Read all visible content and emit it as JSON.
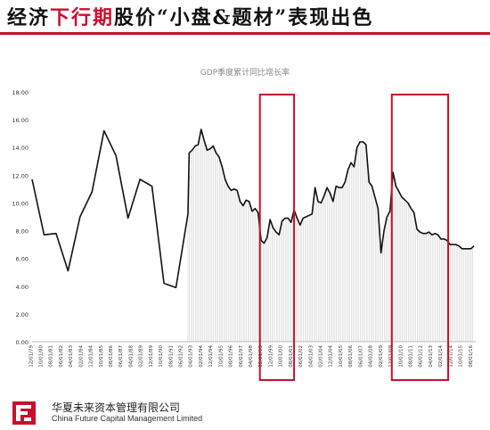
{
  "headline": {
    "part1": "经济",
    "part2": "下行期",
    "part3": "股价“小盘&题材”表现出色"
  },
  "company": {
    "name_cn": "华夏未来资本管理有限公司",
    "name_en": "China Future Capital Management Limited"
  },
  "colors": {
    "accent": "#c8102e",
    "line": "#111111",
    "hatch": "#d4d4d4"
  },
  "chart_data": {
    "type": "line",
    "title": "GDP季度累计同比增长率",
    "ylim": [
      0,
      18
    ],
    "yticks": [
      "0.00",
      "2.00",
      "4.00",
      "6.00",
      "8.00",
      "10.00",
      "12.00",
      "14.00",
      "16.00",
      "18.00"
    ],
    "xticks": [
      "12/01/79",
      "10/01/80",
      "08/01/81",
      "06/01/82",
      "04/01/83",
      "02/01/84",
      "12/01/84",
      "10/01/85",
      "08/01/86",
      "06/01/87",
      "04/01/88",
      "02/01/89",
      "12/01/89",
      "10/01/90",
      "08/01/91",
      "06/01/92",
      "04/01/93",
      "02/01/94",
      "12/01/94",
      "10/01/95",
      "08/01/96",
      "06/01/97",
      "04/01/98",
      "02/01/99",
      "12/01/99",
      "10/01/00",
      "08/01/01",
      "06/01/02",
      "04/01/03",
      "02/01/04",
      "12/01/04",
      "10/01/05",
      "08/01/06",
      "06/01/07",
      "04/01/08",
      "02/01/09",
      "12/01/09",
      "10/01/10",
      "08/01/11",
      "06/01/12",
      "04/01/13",
      "02/01/14",
      "12/01/14",
      "10/01/15",
      "08/01/16"
    ],
    "series": [
      {
        "points": [
          [
            1979.9,
            11.7
          ],
          [
            1980.9,
            7.7
          ],
          [
            1981.9,
            7.8
          ],
          [
            1982.9,
            5.1
          ],
          [
            1983.9,
            9.0
          ],
          [
            1984.9,
            10.8
          ],
          [
            1985.9,
            15.2
          ],
          [
            1986.9,
            13.4
          ],
          [
            1987.9,
            8.9
          ],
          [
            1988.9,
            11.7
          ],
          [
            1989.9,
            11.2
          ],
          [
            1990.9,
            4.2
          ],
          [
            1991.9,
            3.9
          ],
          [
            1992.9,
            9.2
          ],
          [
            1993.0,
            13.6
          ],
          [
            1993.25,
            13.8
          ],
          [
            1993.5,
            14.1
          ],
          [
            1993.75,
            14.2
          ],
          [
            1994.0,
            15.3
          ],
          [
            1994.25,
            14.5
          ],
          [
            1994.5,
            13.8
          ],
          [
            1994.75,
            13.9
          ],
          [
            1995.0,
            14.1
          ],
          [
            1995.25,
            13.6
          ],
          [
            1995.5,
            13.3
          ],
          [
            1995.75,
            12.6
          ],
          [
            1996.0,
            11.7
          ],
          [
            1996.25,
            11.2
          ],
          [
            1996.5,
            10.9
          ],
          [
            1996.75,
            11.0
          ],
          [
            1997.0,
            10.9
          ],
          [
            1997.25,
            10.1
          ],
          [
            1997.5,
            9.8
          ],
          [
            1997.75,
            10.2
          ],
          [
            1998.0,
            10.1
          ],
          [
            1998.25,
            9.4
          ],
          [
            1998.5,
            9.6
          ],
          [
            1998.75,
            9.3
          ],
          [
            1999.0,
            7.3
          ],
          [
            1999.25,
            7.1
          ],
          [
            1999.5,
            7.5
          ],
          [
            1999.75,
            8.8
          ],
          [
            2000.0,
            8.2
          ],
          [
            2000.25,
            7.9
          ],
          [
            2000.5,
            7.7
          ],
          [
            2000.75,
            8.7
          ],
          [
            2001.0,
            8.9
          ],
          [
            2001.25,
            8.9
          ],
          [
            2001.5,
            8.6
          ],
          [
            2001.75,
            9.5
          ],
          [
            2002.0,
            8.9
          ],
          [
            2002.25,
            8.4
          ],
          [
            2002.5,
            8.9
          ],
          [
            2002.75,
            9.0
          ],
          [
            2003.0,
            9.1
          ],
          [
            2003.25,
            9.2
          ],
          [
            2003.5,
            11.1
          ],
          [
            2003.75,
            10.1
          ],
          [
            2004.0,
            10.0
          ],
          [
            2004.25,
            10.5
          ],
          [
            2004.5,
            11.1
          ],
          [
            2004.75,
            10.7
          ],
          [
            2005.0,
            10.1
          ],
          [
            2005.25,
            11.2
          ],
          [
            2005.5,
            11.1
          ],
          [
            2005.75,
            11.1
          ],
          [
            2006.0,
            11.5
          ],
          [
            2006.25,
            12.4
          ],
          [
            2006.5,
            12.9
          ],
          [
            2006.75,
            12.6
          ],
          [
            2007.0,
            14.0
          ],
          [
            2007.25,
            14.4
          ],
          [
            2007.5,
            14.4
          ],
          [
            2007.75,
            14.2
          ],
          [
            2008.0,
            11.5
          ],
          [
            2008.25,
            11.2
          ],
          [
            2008.5,
            10.4
          ],
          [
            2008.75,
            9.6
          ],
          [
            2009.0,
            6.4
          ],
          [
            2009.25,
            8.0
          ],
          [
            2009.5,
            9.0
          ],
          [
            2009.75,
            9.4
          ],
          [
            2010.0,
            12.2
          ],
          [
            2010.25,
            11.2
          ],
          [
            2010.5,
            10.8
          ],
          [
            2010.75,
            10.4
          ],
          [
            2011.0,
            10.2
          ],
          [
            2011.25,
            10.0
          ],
          [
            2011.5,
            9.6
          ],
          [
            2011.75,
            9.3
          ],
          [
            2012.0,
            8.1
          ],
          [
            2012.25,
            7.9
          ],
          [
            2012.5,
            7.8
          ],
          [
            2012.75,
            7.8
          ],
          [
            2013.0,
            7.9
          ],
          [
            2013.25,
            7.7
          ],
          [
            2013.5,
            7.8
          ],
          [
            2013.75,
            7.7
          ],
          [
            2014.0,
            7.4
          ],
          [
            2014.25,
            7.4
          ],
          [
            2014.5,
            7.3
          ],
          [
            2014.75,
            7.0
          ],
          [
            2015.0,
            7.0
          ],
          [
            2015.25,
            7.0
          ],
          [
            2015.5,
            6.9
          ],
          [
            2015.75,
            6.7
          ],
          [
            2016.0,
            6.7
          ],
          [
            2016.25,
            6.7
          ],
          [
            2016.5,
            6.7
          ],
          [
            2016.75,
            6.9
          ]
        ]
      }
    ],
    "highlight_ranges": [
      [
        1998.9,
        2001.75
      ],
      [
        2009.9,
        2014.6
      ]
    ],
    "hatched_range": [
      1992.9,
      2016.75
    ],
    "grid": false,
    "legend": "none"
  }
}
